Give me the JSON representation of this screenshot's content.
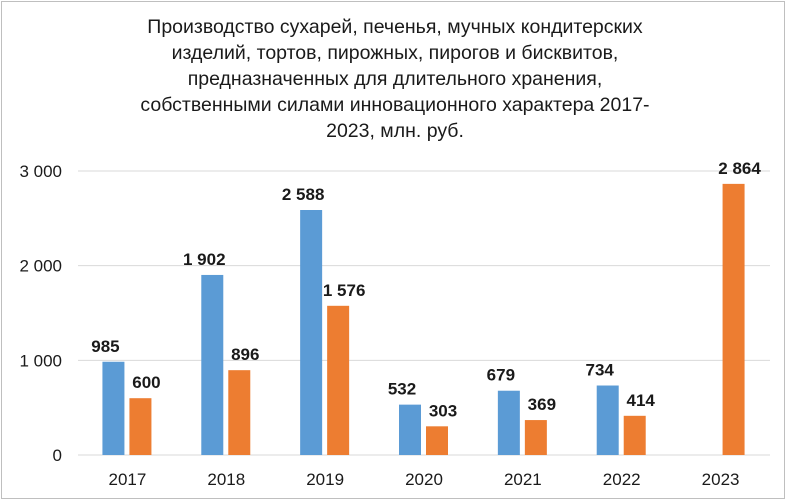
{
  "chart_data": {
    "type": "bar",
    "title_lines": [
      "Производство сухарей, печенья, мучных кондитерских",
      "изделий, тортов, пирожных, пирогов и бисквитов,",
      "предназначенных для длительного хранения,",
      "собственными силами инновационного характера 2017-",
      "2023, млн. руб."
    ],
    "categories": [
      "2017",
      "2018",
      "2019",
      "2020",
      "2021",
      "2022",
      "2023"
    ],
    "series": [
      {
        "name": "series-1",
        "color": "#5B9BD5",
        "values": [
          985,
          1902,
          2588,
          532,
          679,
          734,
          null
        ],
        "labels": [
          "985",
          "1 902",
          "2 588",
          "532",
          "679",
          "734",
          ""
        ]
      },
      {
        "name": "series-2",
        "color": "#ED7D31",
        "values": [
          600,
          896,
          1576,
          303,
          369,
          414,
          2864
        ],
        "labels": [
          "600",
          "896",
          "1 576",
          "303",
          "369",
          "414",
          "2 864"
        ]
      }
    ],
    "ylim": [
      0,
      3000
    ],
    "yticks": [
      0,
      1000,
      2000,
      3000
    ],
    "ytick_labels": [
      "0",
      "1 000",
      "2 000",
      "3 000"
    ],
    "grid": true,
    "xlabel": "",
    "ylabel": ""
  }
}
